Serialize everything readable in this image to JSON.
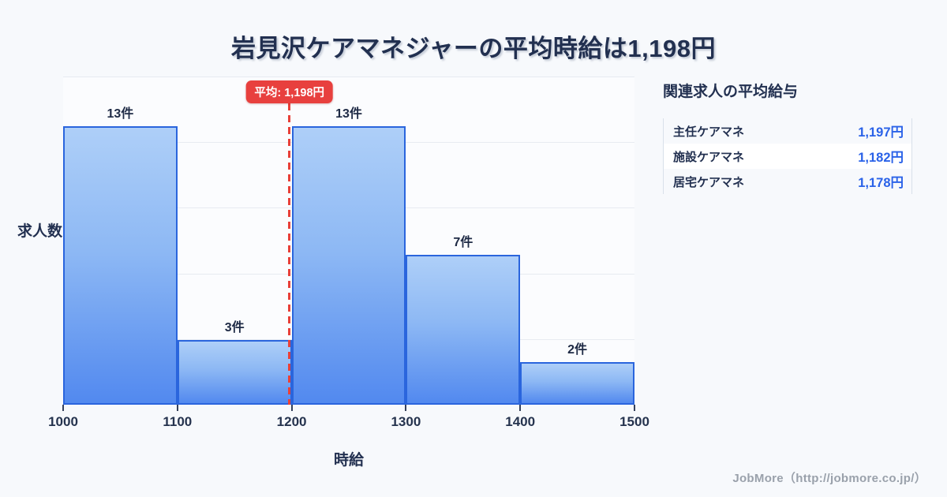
{
  "title": "岩見沢ケアマネジャーの平均時給は1,198円",
  "chart_data": {
    "type": "bar",
    "subtype": "histogram",
    "bin_edges": [
      1000,
      1100,
      1200,
      1300,
      1400,
      1500
    ],
    "categories": [
      "1000-1100",
      "1100-1200",
      "1200-1300",
      "1300-1400",
      "1400-1500"
    ],
    "values": [
      13,
      3,
      13,
      7,
      2
    ],
    "bar_labels": [
      "13件",
      "3件",
      "13件",
      "7件",
      "2件"
    ],
    "x_ticks": [
      "1000",
      "1100",
      "1200",
      "1300",
      "1400",
      "1500"
    ],
    "xlabel": "時給",
    "ylabel": "求人数",
    "ylim": [
      0,
      15.3
    ],
    "grid": "horizontal",
    "legend": "none",
    "mean_marker": {
      "value": 1198,
      "label": "平均: 1,198円"
    },
    "colors": {
      "bar_fill_top": "#aecff8",
      "bar_fill_bottom": "#5289ef",
      "bar_border": "#2a65dd",
      "mean_line": "#e84039",
      "grid": "#e7ebf1",
      "text": "#223050"
    }
  },
  "side_panel": {
    "heading": "関連求人の平均給与",
    "rows": [
      {
        "label": "主任ケアマネ",
        "value": "1,197円"
      },
      {
        "label": "施設ケアマネ",
        "value": "1,182円"
      },
      {
        "label": "居宅ケアマネ",
        "value": "1,178円"
      }
    ],
    "value_color": "#2a62e8"
  },
  "footer": {
    "credit": "JobMore（http://jobmore.co.jp/）"
  }
}
